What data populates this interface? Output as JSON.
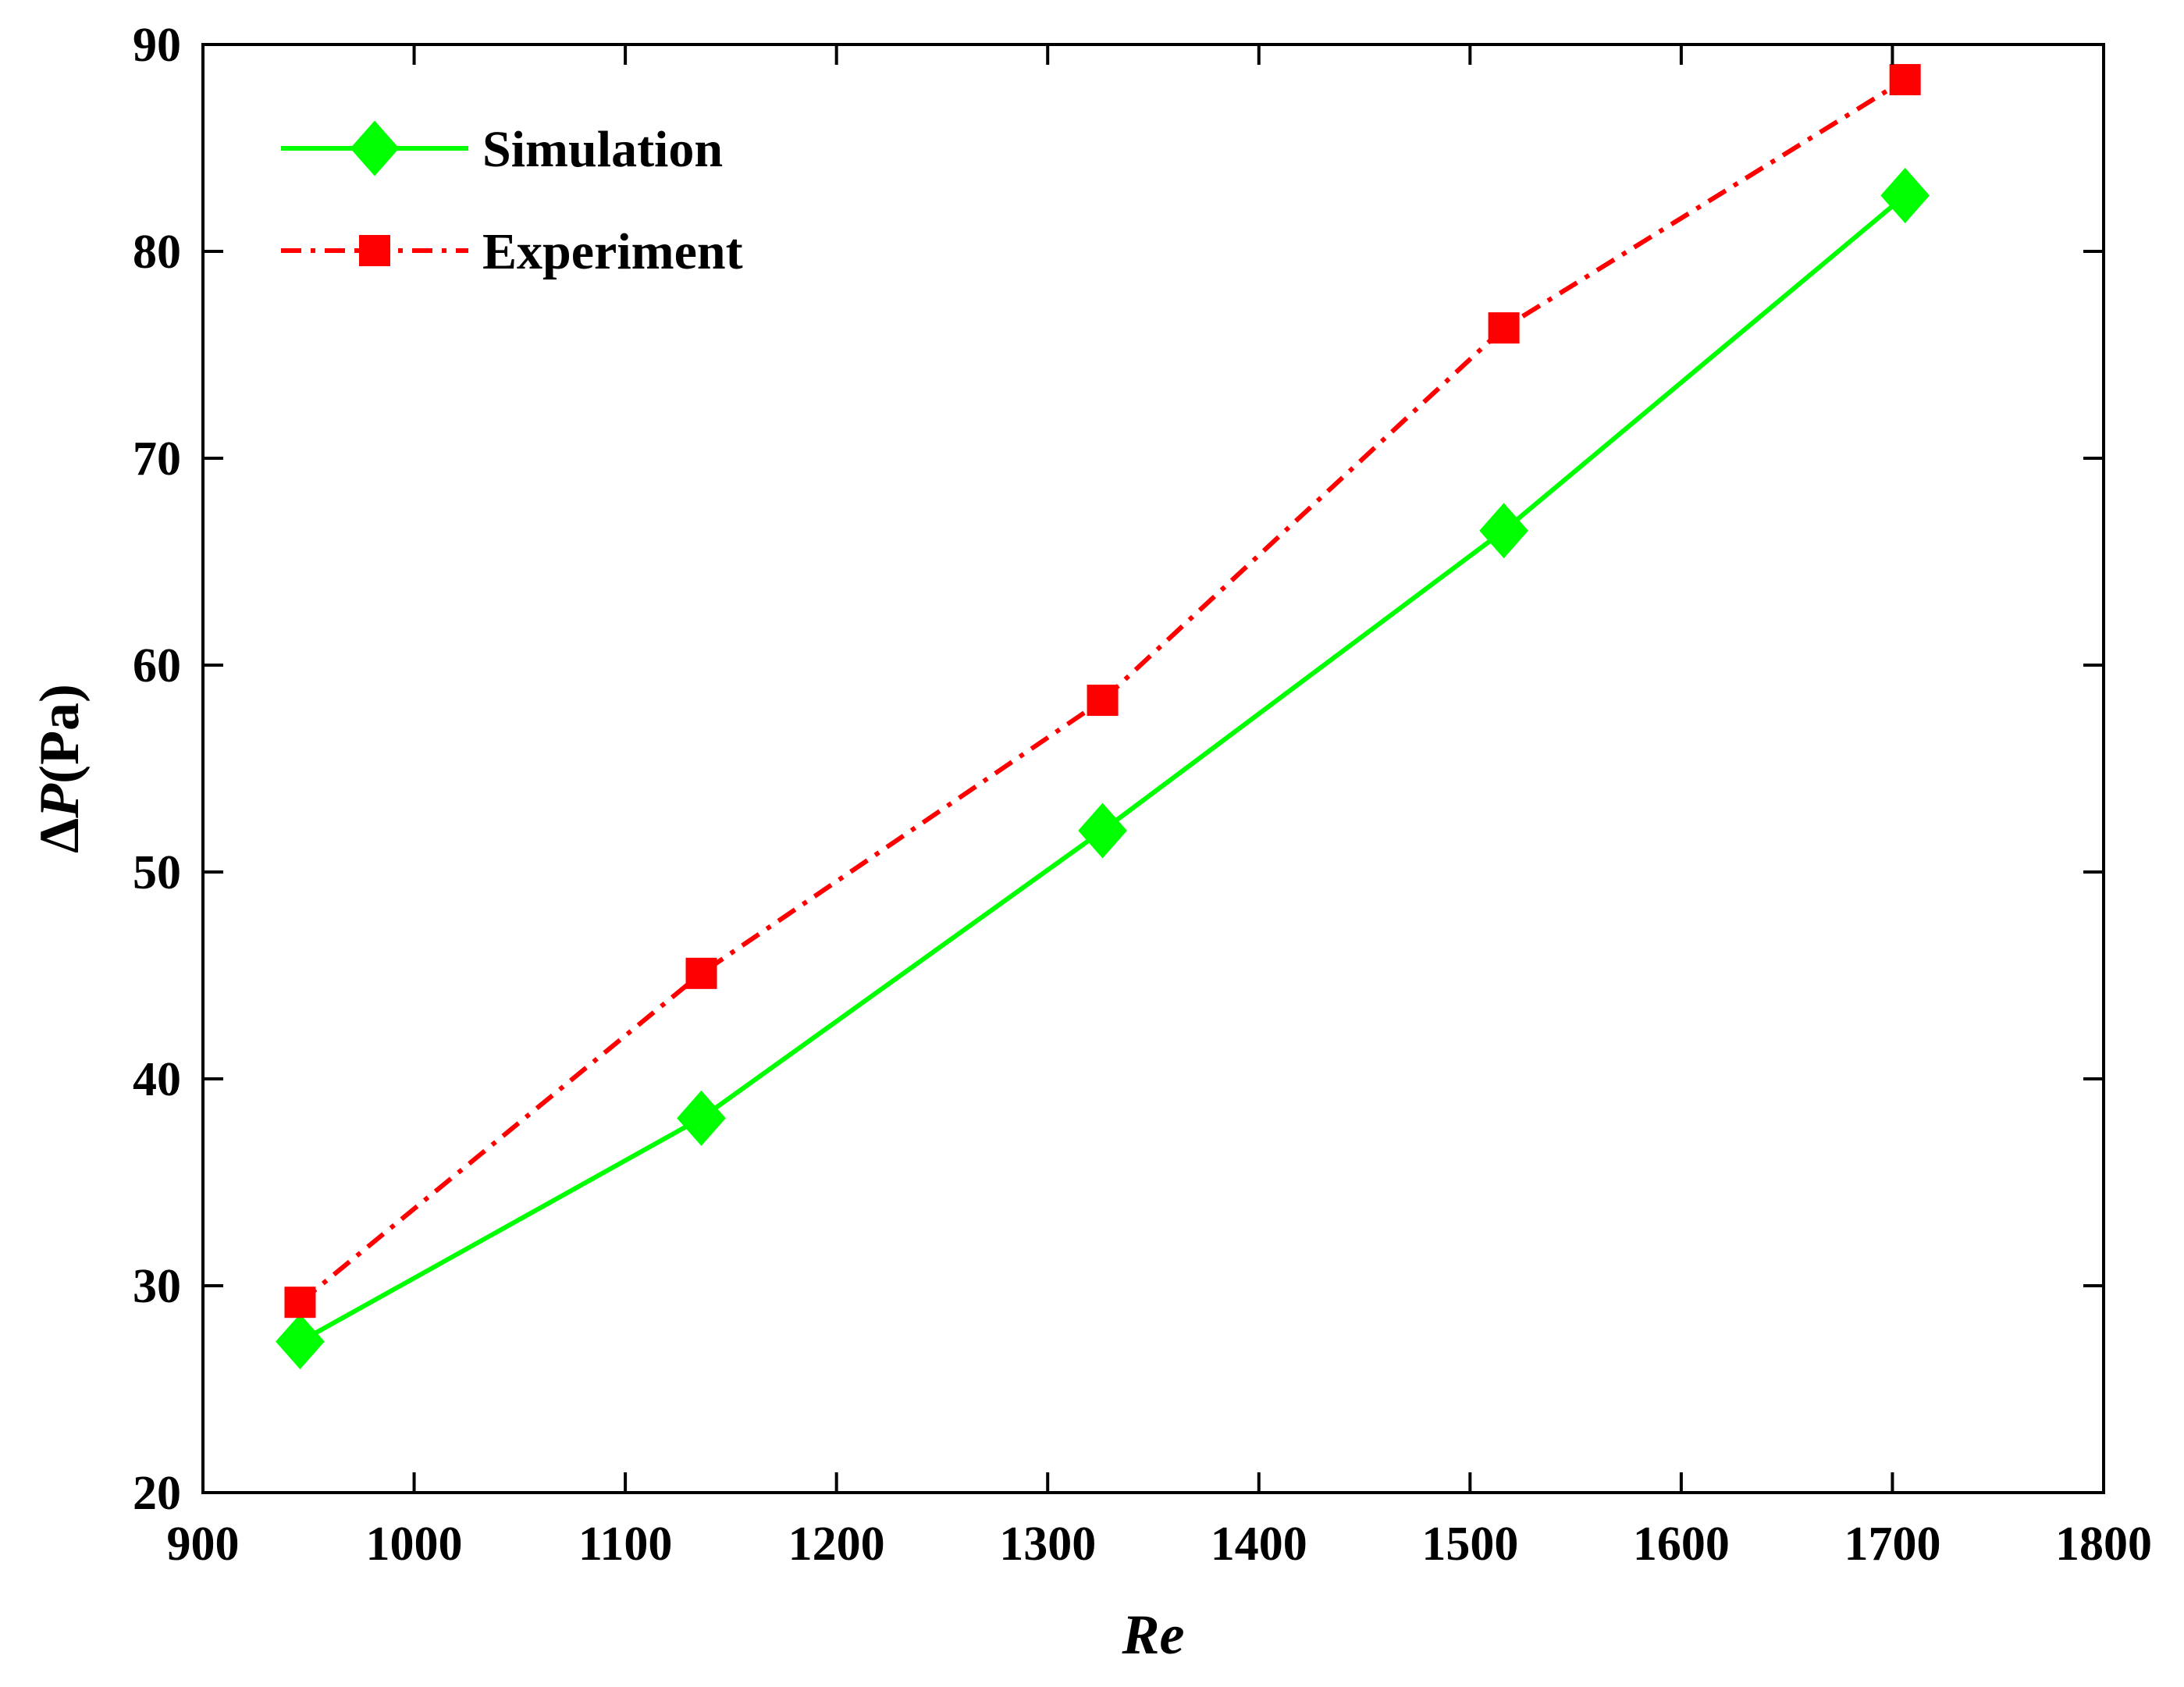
{
  "chart_data": {
    "type": "line",
    "title": "",
    "xlabel": "Re",
    "ylabel_prefix": "Δ",
    "ylabel_var": "P",
    "ylabel_unit": "(Pa)",
    "xlim": [
      900,
      1800
    ],
    "ylim": [
      20,
      90
    ],
    "xticks": [
      900,
      1000,
      1100,
      1200,
      1300,
      1400,
      1500,
      1600,
      1700,
      1800
    ],
    "yticks": [
      20,
      30,
      40,
      50,
      60,
      70,
      80,
      90
    ],
    "grid": false,
    "legend_position": "top-left",
    "series": [
      {
        "name": "Simulation",
        "color": "#00ff00",
        "marker": "diamond",
        "line_style": "solid",
        "x": [
          946,
          1136,
          1326,
          1516,
          1706
        ],
        "y": [
          27.3,
          38.1,
          52.0,
          66.5,
          82.7
        ]
      },
      {
        "name": "Experiment",
        "color": "#ff0000",
        "marker": "square",
        "line_style": "dash-dot",
        "x": [
          946,
          1136,
          1326,
          1516,
          1706
        ],
        "y": [
          29.2,
          45.1,
          58.3,
          76.3,
          88.3
        ]
      }
    ]
  }
}
